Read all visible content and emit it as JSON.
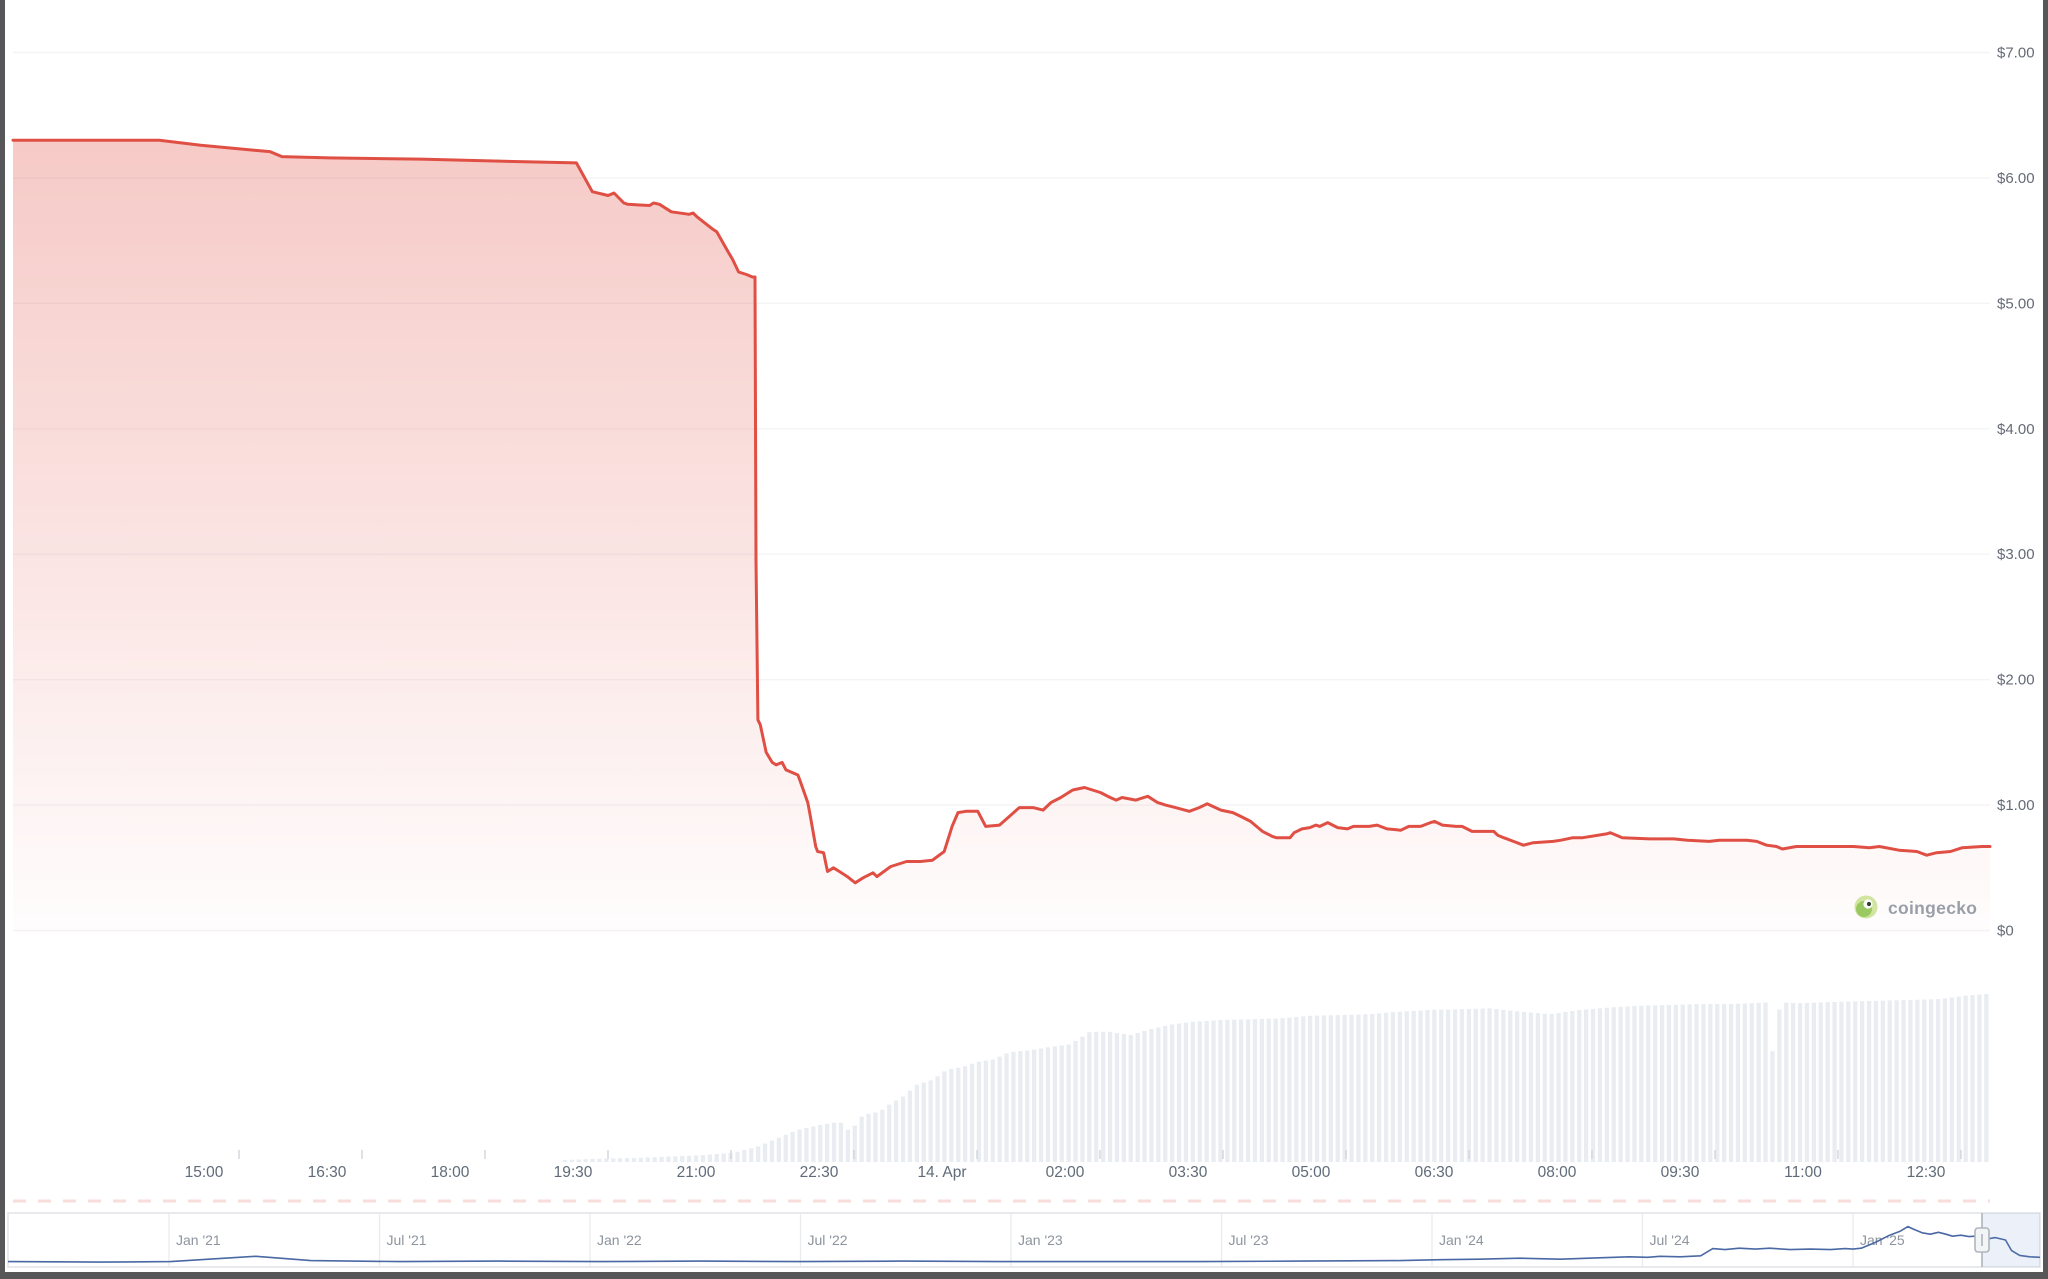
{
  "watermark": {
    "text": "coingecko"
  },
  "colors": {
    "line": "#e04f44",
    "area_top": "rgba(224,79,68,0.30)",
    "area_bottom": "rgba(224,79,68,0.01)",
    "volume_bar": "#e9edf2",
    "grid": "#f3f4f6",
    "axis_text": "#646b77",
    "nav_line": "#4a69a4",
    "nav_border": "#dfe2e7",
    "nav_grid": "#e9ebee",
    "nav_mask": "rgba(102,133,194,0.12)",
    "handle_fill": "#f2f4f6",
    "handle_stroke": "#aeb5bf",
    "tick": "#d3d7dc",
    "dash_row": "rgba(228,100,90,0.22)",
    "frame": "#57575a",
    "gecko_outer": "#d0e5a0",
    "gecko_body": "#9bc961",
    "gecko_pupil": "#33402c"
  },
  "chart_data": {
    "type": "area",
    "grid": true,
    "legend_position": "none",
    "y_axis": {
      "side": "right",
      "range": [
        0,
        7.42
      ],
      "ticks": [
        {
          "label": "$7.00",
          "value": 7
        },
        {
          "label": "$6.00",
          "value": 6
        },
        {
          "label": "$5.00",
          "value": 5
        },
        {
          "label": "$4.00",
          "value": 4
        },
        {
          "label": "$3.00",
          "value": 3
        },
        {
          "label": "$2.00",
          "value": 2
        },
        {
          "label": "$1.00",
          "value": 1
        },
        {
          "label": "$0",
          "value": 0
        }
      ]
    },
    "x_axis": {
      "tick_labels": [
        "15:00",
        "16:30",
        "18:00",
        "19:30",
        "21:00",
        "22:30",
        "14. Apr",
        "02:00",
        "03:30",
        "05:00",
        "06:30",
        "08:00",
        "09:30",
        "11:00",
        "12:30"
      ]
    },
    "price_series": {
      "name": "price-usd",
      "units": "USD",
      "points": [
        [
          0.0,
          6.3
        ],
        [
          0.024,
          6.3
        ],
        [
          0.054,
          6.3
        ],
        [
          0.074,
          6.3
        ],
        [
          0.095,
          6.26
        ],
        [
          0.122,
          6.22
        ],
        [
          0.13,
          6.21
        ],
        [
          0.136,
          6.17
        ],
        [
          0.16,
          6.16
        ],
        [
          0.206,
          6.15
        ],
        [
          0.231,
          6.14
        ],
        [
          0.256,
          6.13
        ],
        [
          0.285,
          6.12
        ],
        [
          0.293,
          5.89
        ],
        [
          0.301,
          5.86
        ],
        [
          0.304,
          5.88
        ],
        [
          0.309,
          5.8
        ],
        [
          0.311,
          5.79
        ],
        [
          0.322,
          5.78
        ],
        [
          0.324,
          5.8
        ],
        [
          0.327,
          5.79
        ],
        [
          0.333,
          5.73
        ],
        [
          0.342,
          5.71
        ],
        [
          0.344,
          5.72
        ],
        [
          0.346,
          5.69
        ],
        [
          0.35,
          5.64
        ],
        [
          0.354,
          5.59
        ],
        [
          0.356,
          5.57
        ],
        [
          0.361,
          5.43
        ],
        [
          0.364,
          5.35
        ],
        [
          0.367,
          5.25
        ],
        [
          0.371,
          5.23
        ],
        [
          0.374,
          5.21
        ],
        [
          0.3753,
          5.21
        ],
        [
          0.3758,
          2.95
        ],
        [
          0.3768,
          1.68
        ],
        [
          0.378,
          1.64
        ],
        [
          0.381,
          1.42
        ],
        [
          0.384,
          1.34
        ],
        [
          0.386,
          1.32
        ],
        [
          0.389,
          1.34
        ],
        [
          0.391,
          1.28
        ],
        [
          0.397,
          1.24
        ],
        [
          0.398,
          1.2
        ],
        [
          0.402,
          1.02
        ],
        [
          0.403,
          0.94
        ],
        [
          0.406,
          0.67
        ],
        [
          0.407,
          0.63
        ],
        [
          0.41,
          0.62
        ],
        [
          0.412,
          0.47
        ],
        [
          0.415,
          0.5
        ],
        [
          0.418,
          0.47
        ],
        [
          0.422,
          0.43
        ],
        [
          0.426,
          0.38
        ],
        [
          0.43,
          0.42
        ],
        [
          0.435,
          0.46
        ],
        [
          0.437,
          0.43
        ],
        [
          0.444,
          0.51
        ],
        [
          0.452,
          0.55
        ],
        [
          0.459,
          0.55
        ],
        [
          0.465,
          0.56
        ],
        [
          0.471,
          0.63
        ],
        [
          0.475,
          0.83
        ],
        [
          0.478,
          0.94
        ],
        [
          0.482,
          0.95
        ],
        [
          0.488,
          0.95
        ],
        [
          0.492,
          0.83
        ],
        [
          0.499,
          0.84
        ],
        [
          0.504,
          0.91
        ],
        [
          0.509,
          0.98
        ],
        [
          0.516,
          0.98
        ],
        [
          0.521,
          0.96
        ],
        [
          0.525,
          1.02
        ],
        [
          0.53,
          1.06
        ],
        [
          0.536,
          1.12
        ],
        [
          0.542,
          1.14
        ],
        [
          0.55,
          1.1
        ],
        [
          0.555,
          1.06
        ],
        [
          0.558,
          1.04
        ],
        [
          0.561,
          1.06
        ],
        [
          0.568,
          1.04
        ],
        [
          0.572,
          1.06
        ],
        [
          0.574,
          1.07
        ],
        [
          0.579,
          1.02
        ],
        [
          0.583,
          1.0
        ],
        [
          0.588,
          0.98
        ],
        [
          0.595,
          0.95
        ],
        [
          0.6,
          0.98
        ],
        [
          0.604,
          1.01
        ],
        [
          0.611,
          0.96
        ],
        [
          0.617,
          0.94
        ],
        [
          0.621,
          0.91
        ],
        [
          0.626,
          0.87
        ],
        [
          0.629,
          0.83
        ],
        [
          0.632,
          0.79
        ],
        [
          0.637,
          0.75
        ],
        [
          0.639,
          0.74
        ],
        [
          0.646,
          0.74
        ],
        [
          0.648,
          0.78
        ],
        [
          0.652,
          0.81
        ],
        [
          0.656,
          0.82
        ],
        [
          0.659,
          0.84
        ],
        [
          0.661,
          0.83
        ],
        [
          0.665,
          0.86
        ],
        [
          0.67,
          0.82
        ],
        [
          0.675,
          0.81
        ],
        [
          0.678,
          0.83
        ],
        [
          0.686,
          0.83
        ],
        [
          0.69,
          0.84
        ],
        [
          0.695,
          0.81
        ],
        [
          0.702,
          0.8
        ],
        [
          0.706,
          0.83
        ],
        [
          0.712,
          0.83
        ],
        [
          0.717,
          0.86
        ],
        [
          0.719,
          0.87
        ],
        [
          0.723,
          0.84
        ],
        [
          0.73,
          0.83
        ],
        [
          0.733,
          0.83
        ],
        [
          0.738,
          0.79
        ],
        [
          0.742,
          0.79
        ],
        [
          0.749,
          0.79
        ],
        [
          0.751,
          0.76
        ],
        [
          0.754,
          0.74
        ],
        [
          0.759,
          0.71
        ],
        [
          0.764,
          0.68
        ],
        [
          0.769,
          0.7
        ],
        [
          0.779,
          0.71
        ],
        [
          0.783,
          0.72
        ],
        [
          0.789,
          0.74
        ],
        [
          0.794,
          0.74
        ],
        [
          0.806,
          0.77
        ],
        [
          0.808,
          0.78
        ],
        [
          0.814,
          0.74
        ],
        [
          0.828,
          0.73
        ],
        [
          0.84,
          0.73
        ],
        [
          0.847,
          0.72
        ],
        [
          0.858,
          0.71
        ],
        [
          0.863,
          0.72
        ],
        [
          0.877,
          0.72
        ],
        [
          0.882,
          0.71
        ],
        [
          0.887,
          0.68
        ],
        [
          0.892,
          0.67
        ],
        [
          0.895,
          0.65
        ],
        [
          0.902,
          0.67
        ],
        [
          0.914,
          0.67
        ],
        [
          0.931,
          0.67
        ],
        [
          0.939,
          0.66
        ],
        [
          0.944,
          0.67
        ],
        [
          0.954,
          0.64
        ],
        [
          0.963,
          0.63
        ],
        [
          0.968,
          0.6
        ],
        [
          0.973,
          0.62
        ],
        [
          0.98,
          0.63
        ],
        [
          0.986,
          0.66
        ],
        [
          0.996,
          0.67
        ],
        [
          1.0,
          0.67
        ]
      ]
    },
    "volume_series": {
      "name": "volume-relative",
      "units": "relative 0-1 (no axis labels shown)",
      "points": [
        [
          0.2757,
          0.01
        ],
        [
          0.2969,
          0.02
        ],
        [
          0.3172,
          0.025
        ],
        [
          0.3374,
          0.035
        ],
        [
          0.3475,
          0.04
        ],
        [
          0.3642,
          0.055
        ],
        [
          0.3763,
          0.09
        ],
        [
          0.3864,
          0.14
        ],
        [
          0.3966,
          0.19
        ],
        [
          0.4082,
          0.22
        ],
        [
          0.4183,
          0.24
        ],
        [
          0.4234,
          0.18
        ],
        [
          0.4299,
          0.28
        ],
        [
          0.4385,
          0.3
        ],
        [
          0.4436,
          0.345
        ],
        [
          0.4502,
          0.39
        ],
        [
          0.4572,
          0.46
        ],
        [
          0.4653,
          0.49
        ],
        [
          0.4724,
          0.55
        ],
        [
          0.4805,
          0.565
        ],
        [
          0.4876,
          0.595
        ],
        [
          0.4957,
          0.61
        ],
        [
          0.5043,
          0.655
        ],
        [
          0.5144,
          0.665
        ],
        [
          0.5245,
          0.685
        ],
        [
          0.5346,
          0.7
        ],
        [
          0.5448,
          0.775
        ],
        [
          0.5549,
          0.775
        ],
        [
          0.565,
          0.755
        ],
        [
          0.5751,
          0.79
        ],
        [
          0.5868,
          0.82
        ],
        [
          0.5969,
          0.835
        ],
        [
          0.6105,
          0.845
        ],
        [
          0.6257,
          0.85
        ],
        [
          0.6409,
          0.855
        ],
        [
          0.656,
          0.87
        ],
        [
          0.6712,
          0.875
        ],
        [
          0.6864,
          0.88
        ],
        [
          0.7016,
          0.895
        ],
        [
          0.7167,
          0.905
        ],
        [
          0.7319,
          0.91
        ],
        [
          0.7471,
          0.915
        ],
        [
          0.7623,
          0.895
        ],
        [
          0.7774,
          0.88
        ],
        [
          0.7926,
          0.905
        ],
        [
          0.8078,
          0.92
        ],
        [
          0.823,
          0.93
        ],
        [
          0.8381,
          0.935
        ],
        [
          0.8533,
          0.94
        ],
        [
          0.8685,
          0.94
        ],
        [
          0.8786,
          0.945
        ],
        [
          0.8877,
          0.95
        ],
        [
          0.8907,
          0.565
        ],
        [
          0.8938,
          0.95
        ],
        [
          0.9039,
          0.945
        ],
        [
          0.914,
          0.95
        ],
        [
          0.9292,
          0.955
        ],
        [
          0.9444,
          0.96
        ],
        [
          0.9595,
          0.965
        ],
        [
          0.9747,
          0.97
        ],
        [
          0.9874,
          0.99
        ],
        [
          0.9975,
          1.0
        ],
        [
          1.0,
          1.0
        ]
      ]
    },
    "navigator": {
      "tick_labels": [
        "Jan '21",
        "Jul '21",
        "Jan '22",
        "Jul '22",
        "Jan '23",
        "Jul '23",
        "Jan '24",
        "Jul '24",
        "Jan '25"
      ],
      "points": [
        [
          0.0,
          0.05
        ],
        [
          0.045,
          0.04
        ],
        [
          0.08,
          0.05
        ],
        [
          0.122,
          0.16
        ],
        [
          0.149,
          0.07
        ],
        [
          0.193,
          0.05
        ],
        [
          0.242,
          0.06
        ],
        [
          0.291,
          0.05
        ],
        [
          0.341,
          0.06
        ],
        [
          0.39,
          0.05
        ],
        [
          0.439,
          0.06
        ],
        [
          0.488,
          0.05
        ],
        [
          0.537,
          0.05
        ],
        [
          0.587,
          0.05
        ],
        [
          0.636,
          0.06
        ],
        [
          0.685,
          0.07
        ],
        [
          0.705,
          0.09
        ],
        [
          0.724,
          0.1
        ],
        [
          0.744,
          0.12
        ],
        [
          0.764,
          0.1
        ],
        [
          0.783,
          0.13
        ],
        [
          0.798,
          0.15
        ],
        [
          0.807,
          0.14
        ],
        [
          0.813,
          0.16
        ],
        [
          0.823,
          0.15
        ],
        [
          0.833,
          0.17
        ],
        [
          0.839,
          0.32
        ],
        [
          0.845,
          0.3
        ],
        [
          0.852,
          0.33
        ],
        [
          0.86,
          0.31
        ],
        [
          0.867,
          0.33
        ],
        [
          0.877,
          0.3
        ],
        [
          0.887,
          0.31
        ],
        [
          0.897,
          0.3
        ],
        [
          0.904,
          0.32
        ],
        [
          0.908,
          0.31
        ],
        [
          0.912,
          0.33
        ],
        [
          0.919,
          0.45
        ],
        [
          0.926,
          0.6
        ],
        [
          0.931,
          0.68
        ],
        [
          0.935,
          0.78
        ],
        [
          0.938,
          0.72
        ],
        [
          0.942,
          0.65
        ],
        [
          0.946,
          0.62
        ],
        [
          0.95,
          0.66
        ],
        [
          0.953,
          0.63
        ],
        [
          0.957,
          0.58
        ],
        [
          0.961,
          0.6
        ],
        [
          0.965,
          0.57
        ],
        [
          0.968,
          0.58
        ],
        [
          0.971,
          0.56
        ],
        [
          0.974,
          0.52
        ],
        [
          0.978,
          0.55
        ],
        [
          0.983,
          0.5
        ],
        [
          0.986,
          0.28
        ],
        [
          0.99,
          0.18
        ],
        [
          0.995,
          0.15
        ],
        [
          1.0,
          0.14
        ]
      ]
    }
  }
}
